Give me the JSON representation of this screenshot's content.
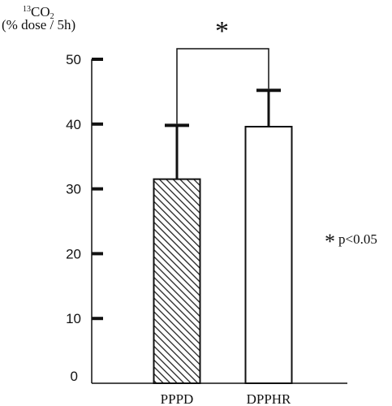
{
  "chart_data": {
    "type": "bar",
    "ylabel_mass": "13",
    "ylabel_compound": "CO",
    "ylabel_subscript": "2",
    "ylabel_units": "(% dose / 5h)",
    "categories": [
      "PPPD",
      "DPPHR"
    ],
    "values": [
      31.5,
      39.6
    ],
    "error_upper": [
      39.8,
      45.2
    ],
    "bar_styles": [
      "hatched",
      "open"
    ],
    "ylim": [
      0,
      50
    ],
    "yticks": [
      0,
      10,
      20,
      30,
      40,
      50
    ],
    "grid": false,
    "significance_marker": "*",
    "significance_note": "p<0.05"
  }
}
